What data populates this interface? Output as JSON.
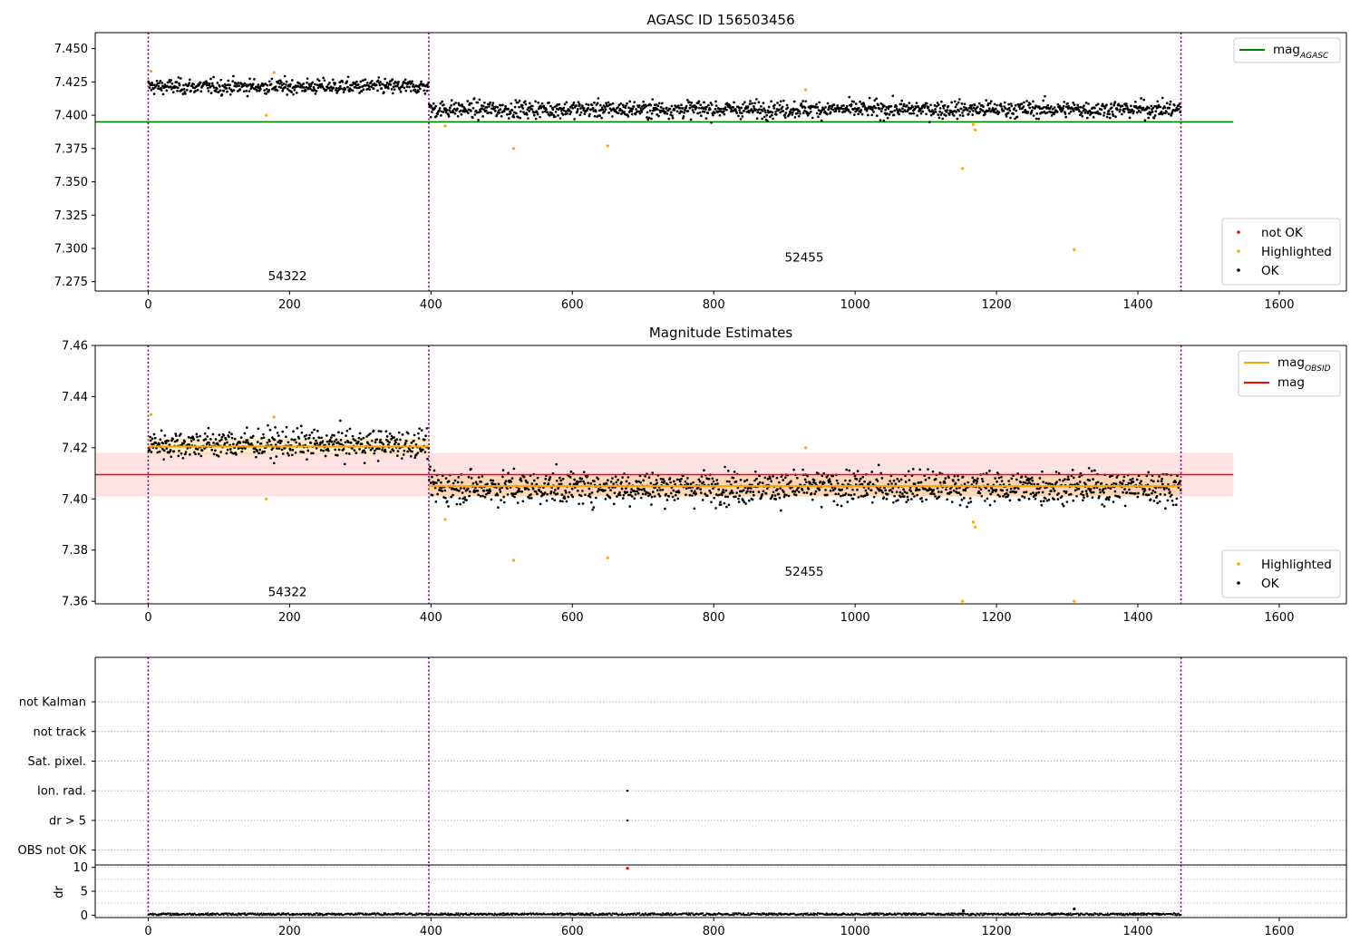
{
  "chart_data": [
    {
      "type": "scatter",
      "title": "AGASC ID 156503456",
      "xlabel": "",
      "ylabel": "",
      "xlim": [
        -75,
        1695
      ],
      "ylim": [
        7.268,
        7.462
      ],
      "xticks": [
        0,
        200,
        400,
        600,
        800,
        1000,
        1200,
        1400,
        1600
      ],
      "yticks": [
        7.275,
        7.3,
        7.325,
        7.35,
        7.375,
        7.4,
        7.425,
        7.45
      ],
      "ytick_labels": [
        "7.275",
        "7.300",
        "7.325",
        "7.350",
        "7.375",
        "7.400",
        "7.425",
        "7.450"
      ],
      "obs_boundaries": [
        0,
        397,
        1461
      ],
      "obs_labels": [
        {
          "text": "54322",
          "x": 197,
          "y": 7.276
        },
        {
          "text": "52455",
          "x": 928,
          "y": 7.29
        }
      ],
      "lines": [
        {
          "name": "mag_AGASC",
          "label_main": "mag",
          "label_sub": "AGASC",
          "y": 7.395,
          "x_range": [
            -75,
            1535
          ],
          "color": "#008000"
        }
      ],
      "segments": [
        {
          "x_range": [
            0,
            397
          ],
          "mean": 7.4215,
          "scatter": 0.004
        },
        {
          "x_range": [
            397,
            1461
          ],
          "mean": 7.4045,
          "scatter": 0.0045
        }
      ],
      "highlighted": [
        [
          4,
          7.433
        ],
        [
          167,
          7.4
        ],
        [
          178,
          7.432
        ],
        [
          420,
          7.392
        ],
        [
          517,
          7.375
        ],
        [
          650,
          7.377
        ],
        [
          930,
          7.419
        ],
        [
          1152,
          7.36
        ],
        [
          1167,
          7.393
        ],
        [
          1170,
          7.389
        ],
        [
          1310,
          7.299
        ]
      ],
      "legend": {
        "position": "lower right",
        "entries": [
          {
            "name": "not OK",
            "color": "#ff0000"
          },
          {
            "name": "Highlighted",
            "color": "#ffa500"
          },
          {
            "name": "OK",
            "color": "#000000"
          }
        ]
      },
      "top_legend": {
        "position": "upper right"
      }
    },
    {
      "type": "scatter",
      "title": "Magnitude Estimates",
      "xlabel": "",
      "ylabel": "",
      "xlim": [
        -75,
        1695
      ],
      "ylim": [
        7.359,
        7.46
      ],
      "xticks": [
        0,
        200,
        400,
        600,
        800,
        1000,
        1200,
        1400,
        1600
      ],
      "yticks": [
        7.36,
        7.38,
        7.4,
        7.42,
        7.44,
        7.46
      ],
      "ytick_labels": [
        "7.36",
        "7.38",
        "7.40",
        "7.42",
        "7.44",
        "7.46"
      ],
      "obs_boundaries": [
        0,
        397,
        1461
      ],
      "obs_labels": [
        {
          "text": "54322",
          "x": 197,
          "y": 7.362
        },
        {
          "text": "52455",
          "x": 928,
          "y": 7.37
        }
      ],
      "mag_band": {
        "y_range": [
          7.401,
          7.418
        ],
        "x_range": [
          -75,
          1535
        ],
        "color": "#ffcccc"
      },
      "lines": [
        {
          "name": "mag_OBSID",
          "label_main": "mag",
          "label_sub": "OBSID",
          "color": "#ffa500",
          "segments": [
            {
              "x_range": [
                0,
                397
              ],
              "y": 7.4205,
              "band": [
                7.4175,
                7.4235
              ]
            },
            {
              "x_range": [
                397,
                1461
              ],
              "y": 7.405,
              "band": [
                7.401,
                7.409
              ]
            }
          ]
        },
        {
          "name": "mag",
          "label_main": "mag",
          "y": 7.4095,
          "x_range": [
            -75,
            1535
          ],
          "color": "#ff0000"
        }
      ],
      "segments": [
        {
          "x_range": [
            0,
            397
          ],
          "mean": 7.4215,
          "scatter": 0.004
        },
        {
          "x_range": [
            397,
            1461
          ],
          "mean": 7.4045,
          "scatter": 0.0045
        }
      ],
      "highlighted": [
        [
          4,
          7.433
        ],
        [
          167,
          7.4
        ],
        [
          178,
          7.432
        ],
        [
          420,
          7.392
        ],
        [
          517,
          7.376
        ],
        [
          650,
          7.377
        ],
        [
          930,
          7.42
        ],
        [
          1152,
          7.36
        ],
        [
          1167,
          7.391
        ],
        [
          1170,
          7.389
        ],
        [
          1310,
          7.36
        ]
      ],
      "legend": {
        "position": "lower right",
        "entries": [
          {
            "name": "Highlighted",
            "color": "#ffa500"
          },
          {
            "name": "OK",
            "color": "#000000"
          }
        ]
      },
      "top_legend": {
        "position": "upper right"
      }
    },
    {
      "type": "scatter",
      "title": "",
      "xlim": [
        -75,
        1695
      ],
      "ylim": [
        -0.5,
        6.5
      ],
      "categories": [
        "OBS not OK",
        "dr > 5",
        "Ion. rad.",
        "Sat. pixel.",
        "not track",
        "not Kalman"
      ],
      "obs_boundaries": [
        0,
        397,
        1461
      ],
      "flags": [
        {
          "category": "Ion. rad.",
          "x": 678
        },
        {
          "category": "dr > 5",
          "x": 678
        }
      ]
    },
    {
      "type": "scatter",
      "title": "",
      "xlabel": "",
      "ylabel": "dr",
      "xlim": [
        -75,
        1695
      ],
      "ylim": [
        -0.5,
        10.5
      ],
      "xticks": [
        0,
        200,
        400,
        600,
        800,
        1000,
        1200,
        1400,
        1600
      ],
      "yticks": [
        0,
        5,
        10
      ],
      "obs_boundaries": [
        0,
        397,
        1461
      ],
      "baseline": {
        "x_range": [
          0,
          1461
        ],
        "y": 0.2
      },
      "highlights": [
        {
          "x": 678,
          "y": 9.8,
          "color": "#ff0000"
        },
        {
          "x": 1153,
          "y": 0.9,
          "color": "#000000"
        },
        {
          "x": 1310,
          "y": 1.3,
          "color": "#000000"
        }
      ]
    }
  ]
}
